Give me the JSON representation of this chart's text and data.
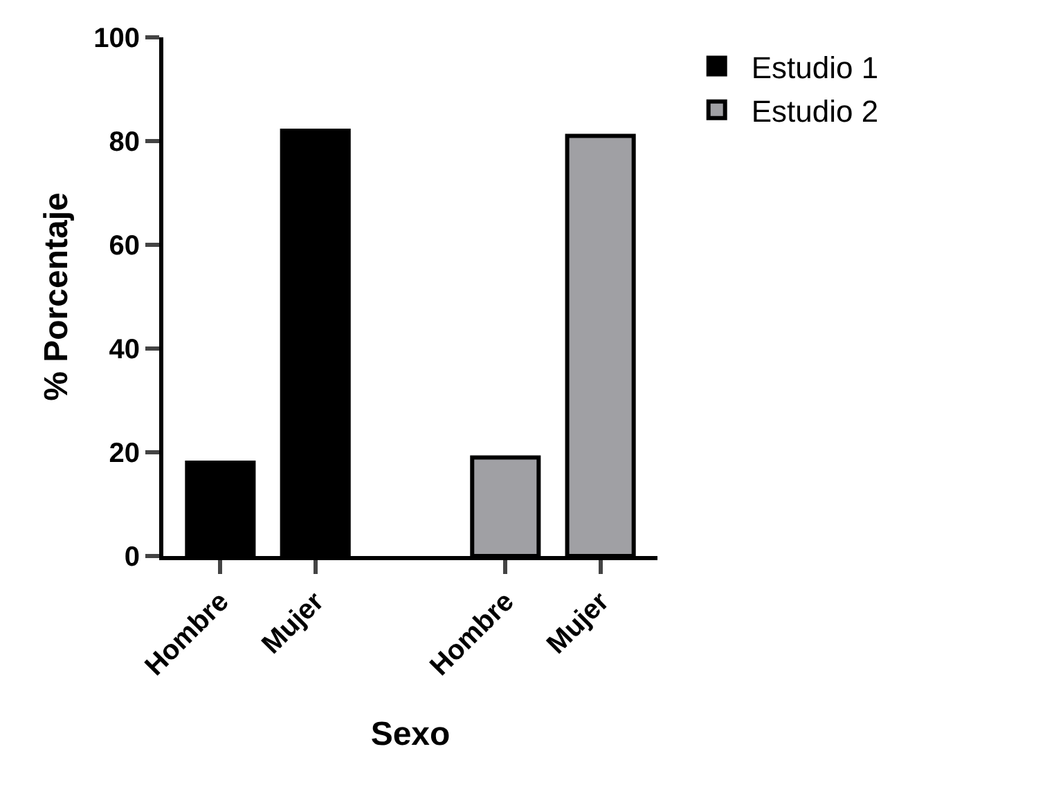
{
  "chart_data": {
    "type": "bar",
    "xlabel": "Sexo",
    "ylabel": "% Porcentaje",
    "categories": [
      "Hombre",
      "Mujer",
      null,
      "Hombre",
      "Mujer"
    ],
    "series": [
      {
        "name": "Estudio 1",
        "color": "#000000",
        "values": [
          18,
          82,
          null,
          null,
          null
        ]
      },
      {
        "name": "Estudio 2",
        "color": "#a0a0a4",
        "values": [
          null,
          null,
          null,
          19,
          81
        ]
      }
    ],
    "ylim": [
      0,
      100
    ],
    "yticks": [
      0,
      20,
      40,
      60,
      80,
      100
    ],
    "grid": false,
    "legend": "top right"
  }
}
